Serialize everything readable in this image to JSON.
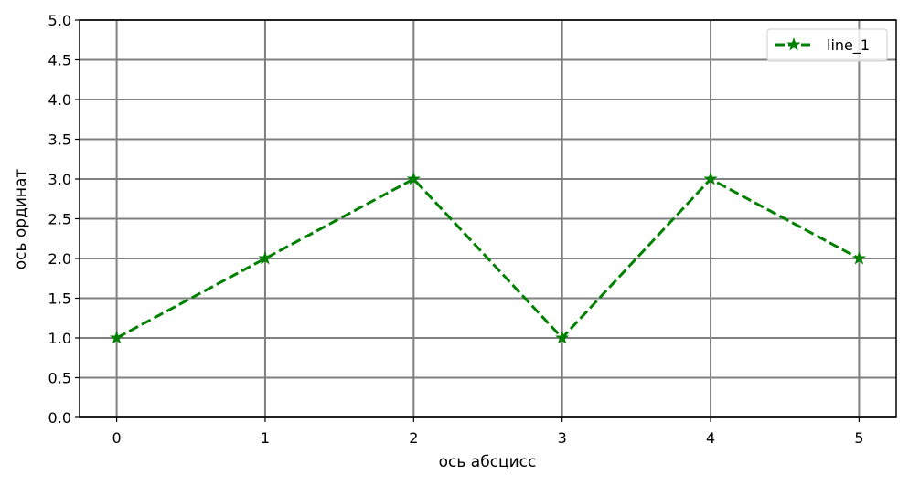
{
  "chart_data": {
    "type": "line",
    "title": "",
    "xlabel": "ось абсцисс",
    "ylabel": "ось ординат",
    "xlim": [
      -0.25,
      5.25
    ],
    "ylim": [
      0,
      5
    ],
    "x_ticks": [
      "0",
      "1",
      "2",
      "3",
      "4",
      "5"
    ],
    "y_ticks": [
      "0.0",
      "0.5",
      "1.0",
      "1.5",
      "2.0",
      "2.5",
      "3.0",
      "3.5",
      "4.0",
      "4.5",
      "5.0"
    ],
    "grid": true,
    "grid_color": "#808080",
    "legend_position": "top-right",
    "series": [
      {
        "name": "line_1",
        "color": "#008000",
        "line_style": "dashed",
        "marker": "star",
        "x": [
          0,
          1,
          2,
          3,
          4,
          5
        ],
        "y": [
          1,
          2,
          3,
          1,
          3,
          2
        ]
      }
    ]
  }
}
